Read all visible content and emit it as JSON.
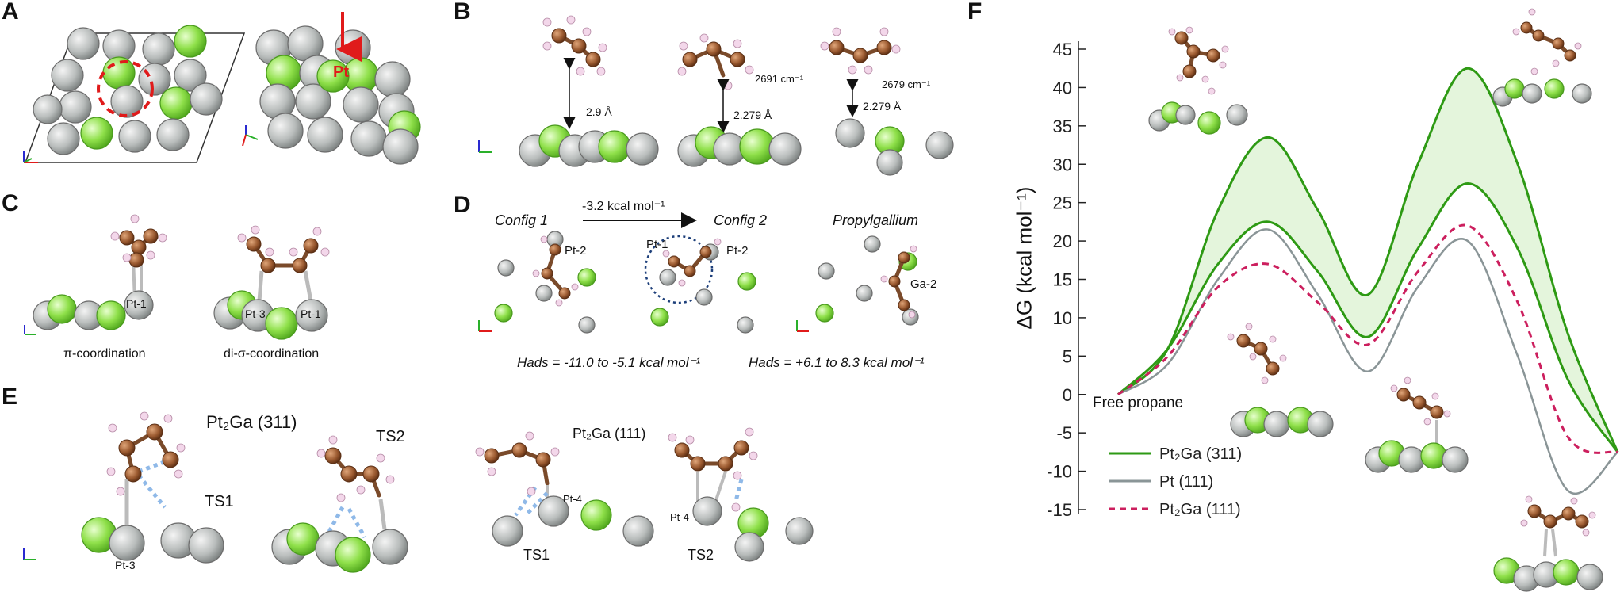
{
  "panels": {
    "A": {
      "letter": "A",
      "pt_label": "Pt"
    },
    "B": {
      "letter": "B",
      "dist1": "2.9 Å",
      "dist2": "2.279 Å",
      "dist3": "2.279 Å",
      "freq1": "2691 cm⁻¹",
      "freq2": "2679 cm⁻¹"
    },
    "C": {
      "letter": "C",
      "pt1a": "Pt-1",
      "pt3": "Pt-3",
      "pt1b": "Pt-1",
      "cap1": "π-coordination",
      "cap2": "di-σ-coordination"
    },
    "D": {
      "letter": "D",
      "config1": "Config 1",
      "config2": "Config 2",
      "propylgallium": "Propylgallium",
      "arrow_energy": "-3.2 kcal mol⁻¹",
      "pt2a": "Pt-2",
      "pt1": "Pt-1",
      "pt2b": "Pt-2",
      "ga2": "Ga-2",
      "hads1": "Hads = -11.0 to -5.1  kcal mol⁻¹",
      "hads2": "Hads = +6.1 to 8.3 kcal mol⁻¹"
    },
    "E": {
      "letter": "E",
      "surf1": "Pt₂Ga (311)",
      "ts2a": "TS2",
      "ts1a": "TS1",
      "pt3": "Pt-3",
      "surf2": "Pt₂Ga (111)",
      "pt4a": "Pt-4",
      "pt4b": "Pt-4",
      "ts1b": "TS1",
      "ts2b": "TS2"
    },
    "F": {
      "letter": "F",
      "free_propane": "Free propane"
    }
  },
  "chart_data": {
    "type": "line",
    "title": "",
    "xlabel": "",
    "ylabel": "ΔG (kcal mol⁻¹)",
    "ylim": [
      -15,
      45
    ],
    "yticks": [
      "45",
      "40",
      "35",
      "30",
      "25",
      "20",
      "15",
      "10",
      "5",
      "0",
      "-5",
      "-10",
      "-15"
    ],
    "x_stages": [
      0,
      0.1,
      0.2,
      0.3,
      0.4,
      0.5,
      0.6,
      0.7,
      0.8,
      0.9,
      1.0
    ],
    "series": [
      {
        "name": "Pt₂Ga (311)",
        "color": "#2e9a14",
        "dash": false,
        "values_upper": [
          0,
          6,
          24,
          33.5,
          24,
          13,
          30,
          42.5,
          30,
          8,
          -7.5
        ],
        "values_lower": [
          0,
          6,
          17,
          22.5,
          16,
          7.5,
          19,
          27.5,
          19,
          2,
          -7.5
        ]
      },
      {
        "name": "Pt (111)",
        "color": "#8a9597",
        "dash": false,
        "values": [
          0,
          4,
          15,
          21.5,
          13,
          3,
          14,
          20,
          5,
          -12.5,
          -7.5
        ]
      },
      {
        "name": "Pt₂Ga (111)",
        "color": "#cc1f5e",
        "dash": true,
        "values": [
          0,
          5,
          14,
          17,
          12,
          6.5,
          16,
          22,
          12,
          -5.5,
          -7.5
        ]
      }
    ],
    "legend": [
      {
        "label": "Pt₂Ga (311)",
        "color": "#2e9a14",
        "dash": false
      },
      {
        "label": "Pt (111)",
        "color": "#8a9597",
        "dash": false
      },
      {
        "label": "Pt₂Ga (111)",
        "color": "#cc1f5e",
        "dash": true
      }
    ],
    "legend_position": "bottom-left",
    "grid": false
  }
}
